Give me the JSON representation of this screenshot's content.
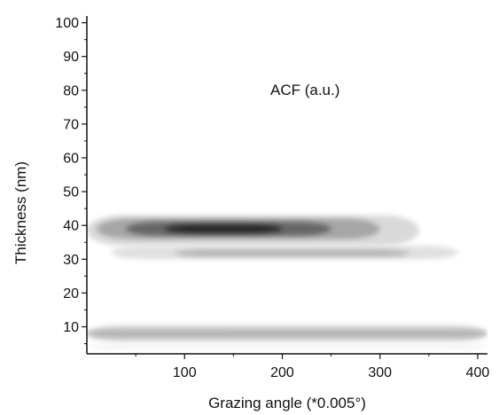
{
  "chart_data": {
    "type": "contour",
    "title": "",
    "xlabel": "Grazing angle (*0.005°)",
    "ylabel": "Thickness (nm)",
    "annotation": "ACF (a.u.)",
    "xlim": [
      0,
      410
    ],
    "ylim": [
      2,
      102
    ],
    "x_ticks": [
      100,
      200,
      300,
      400
    ],
    "x_minor_ticks": [
      50,
      150,
      250,
      350
    ],
    "y_ticks": [
      10,
      20,
      30,
      40,
      50,
      60,
      70,
      80,
      90,
      100
    ],
    "y_minor_ticks": [
      5,
      15,
      25,
      35,
      45,
      55,
      65,
      75,
      85,
      95
    ],
    "grid": false,
    "colormap": "grayscale",
    "features": [
      {
        "name": "band-40nm-outer",
        "x_range": [
          0,
          340
        ],
        "y_center": 38.5,
        "y_halfwidth": 4.5,
        "level": 0.15
      },
      {
        "name": "band-40nm-mid",
        "x_range": [
          10,
          300
        ],
        "y_center": 39,
        "y_halfwidth": 3.0,
        "level": 0.35
      },
      {
        "name": "band-40nm-inner",
        "x_range": [
          40,
          250
        ],
        "y_center": 39,
        "y_halfwidth": 2.0,
        "level": 0.6
      },
      {
        "name": "band-40nm-core",
        "x_range": [
          80,
          200
        ],
        "y_center": 39,
        "y_halfwidth": 1.2,
        "level": 0.85
      },
      {
        "name": "band-32nm-outer",
        "x_range": [
          25,
          380
        ],
        "y_center": 32,
        "y_halfwidth": 2.0,
        "level": 0.12
      },
      {
        "name": "band-32nm-inner",
        "x_range": [
          90,
          330
        ],
        "y_center": 31.8,
        "y_halfwidth": 1.0,
        "level": 0.3
      },
      {
        "name": "band-8nm-outer",
        "x_range": [
          0,
          410
        ],
        "y_center": 8,
        "y_halfwidth": 2.5,
        "level": 0.15
      },
      {
        "name": "band-8nm-inner",
        "x_range": [
          0,
          410
        ],
        "y_center": 8,
        "y_halfwidth": 1.2,
        "level": 0.3
      },
      {
        "name": "band-4nm",
        "x_range": [
          0,
          410
        ],
        "y_center": 4,
        "y_halfwidth": 0.6,
        "level": 0.06
      }
    ]
  }
}
